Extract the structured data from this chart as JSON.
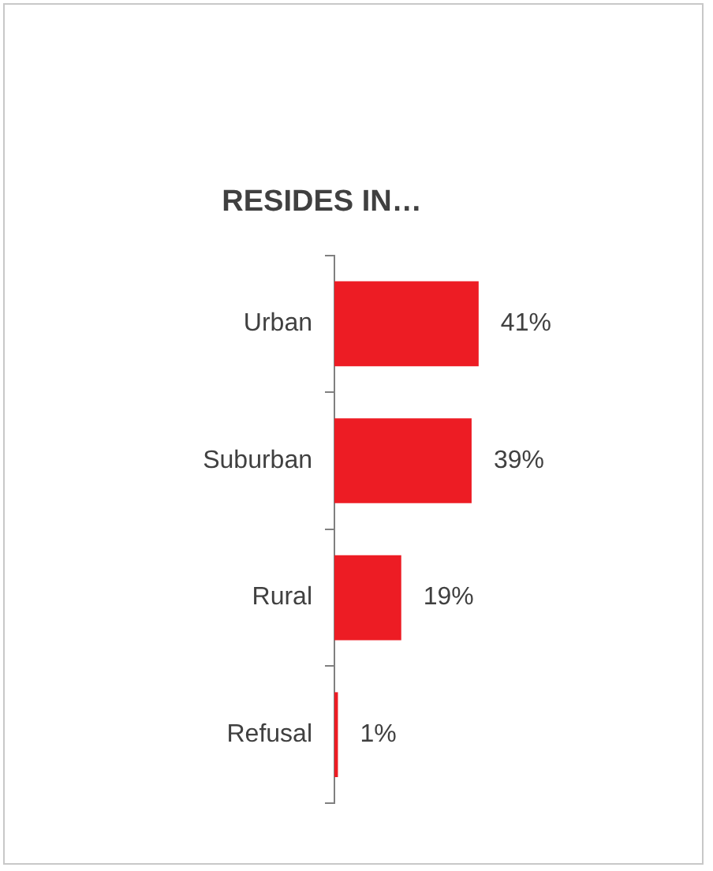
{
  "chart_data": {
    "type": "bar",
    "orientation": "horizontal",
    "title": "RESIDES IN…",
    "categories": [
      "Urban",
      "Suburban",
      "Rural",
      "Refusal"
    ],
    "values": [
      41,
      39,
      19,
      1
    ],
    "value_labels": [
      "41%",
      "39%",
      "19%",
      "1%"
    ],
    "color": "#ed1c24",
    "legend": false
  }
}
